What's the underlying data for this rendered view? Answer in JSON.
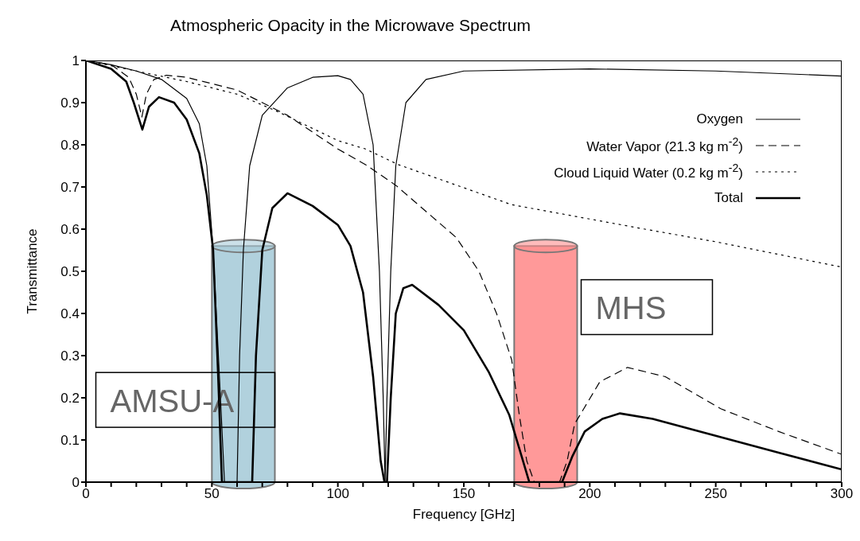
{
  "chart_data": {
    "type": "line",
    "title": "Atmospheric Opacity in the Microwave Spectrum",
    "xlabel": "Frequency [GHz]",
    "ylabel": "Transmittance",
    "xlim": [
      0,
      300
    ],
    "xticks": [
      0,
      {
        "value": 10,
        "label": null
      },
      {
        "value": 20,
        "label": null
      },
      {
        "value": 30,
        "label": null
      },
      {
        "value": 40,
        "label": null
      },
      50,
      {
        "value": 60,
        "label": null
      },
      {
        "value": 70,
        "label": null
      },
      {
        "value": 80,
        "label": null
      },
      {
        "value": 90,
        "label": null
      },
      100,
      {
        "value": 110,
        "label": null
      },
      {
        "value": 120,
        "label": null
      },
      {
        "value": 130,
        "label": null
      },
      {
        "value": 140,
        "label": null
      },
      150,
      {
        "value": 160,
        "label": null
      },
      {
        "value": 170,
        "label": null
      },
      {
        "value": 180,
        "label": null
      },
      {
        "value": 190,
        "label": null
      },
      200,
      {
        "value": 210,
        "label": null
      },
      {
        "value": 220,
        "label": null
      },
      {
        "value": 230,
        "label": null
      },
      {
        "value": 240,
        "label": null
      },
      250,
      {
        "value": 260,
        "label": null
      },
      {
        "value": 270,
        "label": null
      },
      {
        "value": 280,
        "label": null
      },
      {
        "value": 290,
        "label": null
      },
      300
    ],
    "ylim": [
      0,
      1
    ],
    "yticks": [
      0,
      0.1,
      0.2,
      0.3,
      0.4,
      0.5,
      0.6,
      0.7,
      0.8,
      0.9,
      1
    ],
    "legend": "top right",
    "marker": "none",
    "series": [
      {
        "name": "Oxygen",
        "color": "#000000",
        "line_style": "solid",
        "x": [
          0,
          10,
          20,
          30,
          40,
          45,
          48,
          50.5,
          53,
          55,
          60,
          61,
          62.5,
          65,
          70,
          80,
          90,
          100,
          105,
          110,
          114,
          116.5,
          118,
          118.75,
          119.5,
          121,
          123,
          127,
          135,
          150,
          200,
          250,
          300
        ],
        "values": [
          1,
          0.99,
          0.975,
          0.955,
          0.91,
          0.85,
          0.75,
          0.55,
          0.25,
          0,
          0,
          0.3,
          0.55,
          0.75,
          0.87,
          0.935,
          0.96,
          0.964,
          0.955,
          0.92,
          0.8,
          0.5,
          0.2,
          0,
          0.2,
          0.5,
          0.75,
          0.9,
          0.955,
          0.975,
          0.98,
          0.975,
          0.963
        ]
      },
      {
        "name": "Water Vapor (21.3 kg m$^{-2}$)",
        "color": "#000000",
        "line_style": "dashed",
        "x": [
          0,
          10,
          17,
          20,
          22.2,
          24,
          27,
          32,
          40,
          60,
          80,
          100,
          111,
          123,
          147,
          156,
          163,
          169,
          172,
          175,
          178,
          188,
          191,
          194,
          204,
          215,
          230,
          252,
          275,
          300
        ],
        "values": [
          1,
          0.99,
          0.96,
          0.92,
          0.866,
          0.92,
          0.955,
          0.965,
          0.96,
          0.93,
          0.87,
          0.79,
          0.753,
          0.704,
          0.58,
          0.5,
          0.4,
          0.29,
          0.16,
          0.05,
          0,
          0,
          0.05,
          0.138,
          0.238,
          0.272,
          0.25,
          0.174,
          0.12,
          0.066
        ]
      },
      {
        "name": "Cloud Liquid Water (0.2 kg m$^{-2}$)",
        "color": "#000000",
        "line_style": "dotted",
        "x": [
          0,
          20,
          40,
          60,
          76,
          100,
          111,
          124,
          169,
          220,
          250,
          300
        ],
        "values": [
          1,
          0.975,
          0.95,
          0.92,
          0.879,
          0.81,
          0.79,
          0.753,
          0.658,
          0.602,
          0.57,
          0.51
        ]
      },
      {
        "name": "Total",
        "color": "#000000",
        "line_style": "solid",
        "x": [
          0,
          10,
          16,
          19,
          22.4,
          25,
          29,
          35,
          40,
          45,
          48,
          50.5,
          52.5,
          54,
          66,
          67.5,
          70,
          74,
          80,
          90,
          100,
          105,
          110,
          114,
          117,
          118.5,
          119.5,
          121,
          123,
          126,
          129.5,
          140,
          150,
          160,
          168,
          173,
          176,
          189,
          193,
          198,
          205,
          212,
          225,
          250,
          275,
          300
        ],
        "values": [
          1,
          0.98,
          0.95,
          0.9,
          0.836,
          0.89,
          0.913,
          0.9,
          0.86,
          0.78,
          0.68,
          0.55,
          0.25,
          0,
          0,
          0.3,
          0.55,
          0.65,
          0.685,
          0.655,
          0.61,
          0.56,
          0.45,
          0.25,
          0.05,
          0,
          0,
          0.2,
          0.4,
          0.46,
          0.468,
          0.42,
          0.36,
          0.26,
          0.16,
          0.06,
          0,
          0,
          0.06,
          0.12,
          0.15,
          0.163,
          0.15,
          0.11,
          0.07,
          0.03
        ]
      }
    ],
    "bands": [
      {
        "axis": "x",
        "from": 50,
        "to": 75,
        "label": "AMSU-A",
        "color": "#a8ccd9"
      },
      {
        "axis": "x",
        "from": 170,
        "to": 195,
        "label": "MHS",
        "color": "#ff8e8e"
      }
    ]
  }
}
